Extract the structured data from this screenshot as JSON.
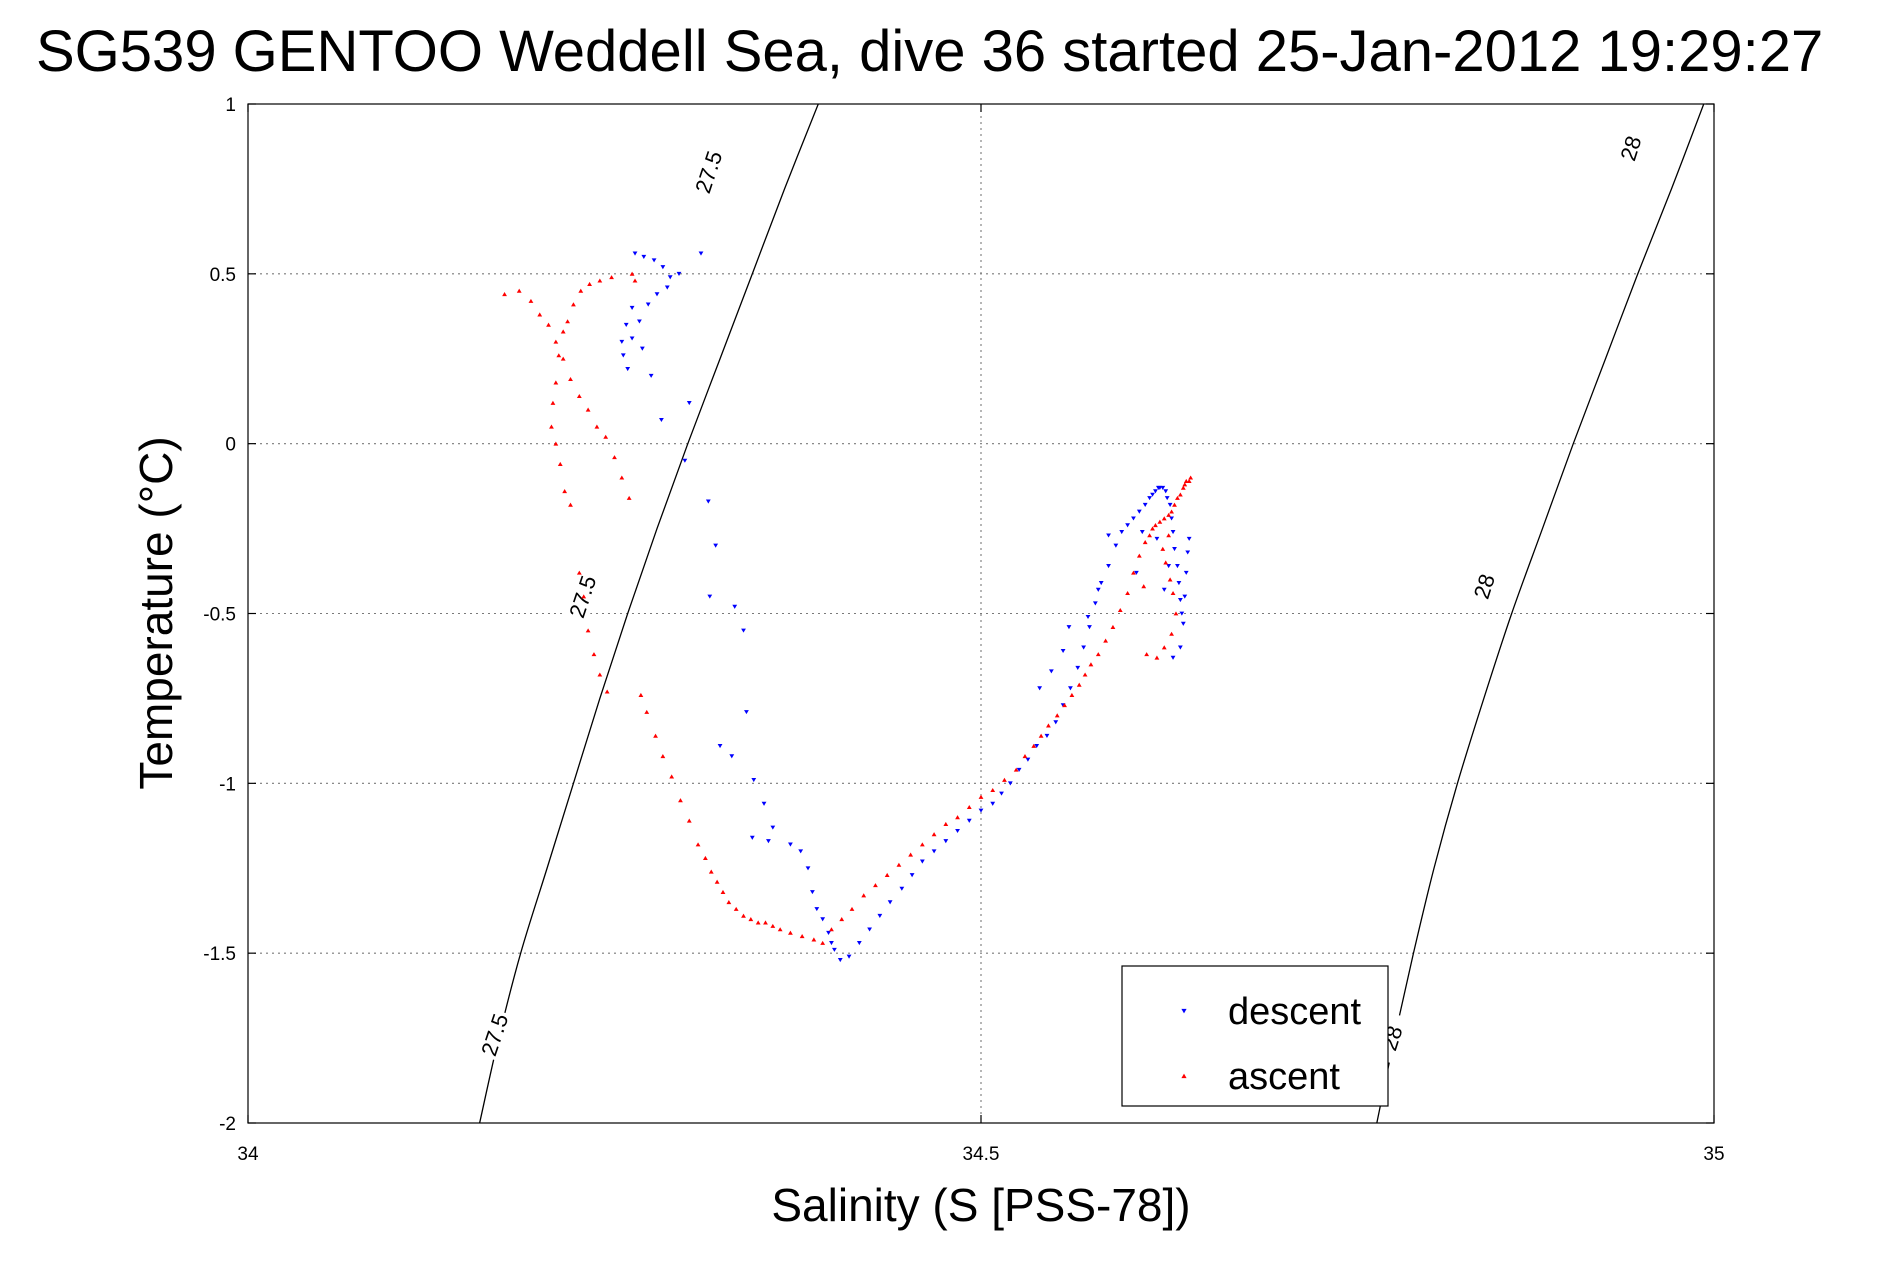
{
  "chart_data": {
    "type": "scatter",
    "title": "SG539 GENTOO Weddell Sea, dive 36 started 25-Jan-2012 19:29:27",
    "xlabel": "Salinity (S [PSS-78])",
    "ylabel": "Temperature (°C)",
    "xlim": [
      34,
      35
    ],
    "ylim": [
      -2,
      1
    ],
    "xticks": [
      34,
      34.5,
      35
    ],
    "xtick_labels": [
      "34",
      "34.5",
      "35"
    ],
    "yticks": [
      1,
      0.5,
      0,
      -0.5,
      -1,
      -1.5,
      -2
    ],
    "ytick_labels": [
      "1",
      "0.5",
      "0",
      "-0.5",
      "-1",
      "-1.5",
      "-2"
    ],
    "grid": true,
    "legend_position": "bottom-right",
    "isopycnals": [
      {
        "label": "27.5",
        "value": 27.5,
        "color": "#000000",
        "points": [
          [
            34.158,
            -2.0
          ],
          [
            34.171,
            -1.75
          ],
          [
            34.186,
            -1.5
          ],
          [
            34.204,
            -1.25
          ],
          [
            34.222,
            -1.0
          ],
          [
            34.24,
            -0.75
          ],
          [
            34.259,
            -0.5
          ],
          [
            34.279,
            -0.25
          ],
          [
            34.3,
            0.0
          ],
          [
            34.322,
            0.25
          ],
          [
            34.344,
            0.5
          ],
          [
            34.366,
            0.75
          ],
          [
            34.389,
            1.0
          ]
        ],
        "label_positions": [
          [
            34.168,
            -1.74
          ],
          [
            34.228,
            -0.45
          ],
          [
            34.314,
            0.8
          ]
        ]
      },
      {
        "label": "28",
        "value": 28,
        "color": "#000000",
        "points": [
          [
            34.77,
            -2.0
          ],
          [
            34.782,
            -1.75
          ],
          [
            34.795,
            -1.5
          ],
          [
            34.809,
            -1.25
          ],
          [
            34.825,
            -1.0
          ],
          [
            34.843,
            -0.75
          ],
          [
            34.862,
            -0.5
          ],
          [
            34.883,
            -0.25
          ],
          [
            34.904,
            0.0
          ],
          [
            34.926,
            0.25
          ],
          [
            34.948,
            0.5
          ],
          [
            34.971,
            0.75
          ],
          [
            34.993,
            1.0
          ]
        ],
        "label_positions": [
          [
            34.78,
            -1.75
          ],
          [
            34.843,
            -0.42
          ],
          [
            34.943,
            0.87
          ]
        ]
      }
    ],
    "series": [
      {
        "name": "descent",
        "marker": "triangle-down",
        "color": "#0000ff",
        "x": [
          34.264,
          34.27,
          34.277,
          34.283,
          34.288,
          34.262,
          34.258,
          34.255,
          34.256,
          34.259,
          34.262,
          34.267,
          34.273,
          34.279,
          34.286,
          34.294,
          34.309,
          34.301,
          34.269,
          34.275,
          34.282,
          34.314,
          34.298,
          34.319,
          34.315,
          34.332,
          34.338,
          34.34,
          34.322,
          34.33,
          34.345,
          34.352,
          34.358,
          34.344,
          34.355,
          34.37,
          34.377,
          34.382,
          34.385,
          34.388,
          34.392,
          34.396,
          34.398,
          34.4,
          34.404,
          34.41,
          34.417,
          34.424,
          34.431,
          34.438,
          34.446,
          34.453,
          34.46,
          34.468,
          34.476,
          34.484,
          34.492,
          34.5,
          34.508,
          34.514,
          34.52,
          34.526,
          34.532,
          34.538,
          34.545,
          34.551,
          34.556,
          34.561,
          34.566,
          34.57,
          34.574,
          34.578,
          34.582,
          34.587,
          34.592,
          34.596,
          34.6,
          34.604,
          34.608,
          34.612,
          34.615,
          34.617,
          34.619,
          34.621,
          34.622,
          34.624,
          34.626,
          34.627,
          34.629,
          34.63,
          34.631,
          34.632,
          34.634,
          34.635,
          34.636,
          34.637,
          34.638,
          34.639,
          34.64,
          34.641,
          34.642,
          34.628,
          34.625,
          34.62,
          34.636,
          34.631,
          34.61,
          34.606,
          34.587,
          34.58,
          34.573,
          34.56,
          34.556,
          34.548,
          34.54
        ],
        "y": [
          0.56,
          0.55,
          0.54,
          0.52,
          0.49,
          0.4,
          0.35,
          0.3,
          0.26,
          0.22,
          0.31,
          0.36,
          0.41,
          0.44,
          0.46,
          0.5,
          0.56,
          0.12,
          0.28,
          0.2,
          0.07,
          -0.17,
          -0.05,
          -0.3,
          -0.45,
          -0.48,
          -0.55,
          -0.79,
          -0.89,
          -0.92,
          -0.99,
          -1.06,
          -1.13,
          -1.16,
          -1.17,
          -1.18,
          -1.2,
          -1.25,
          -1.32,
          -1.37,
          -1.4,
          -1.44,
          -1.47,
          -1.49,
          -1.52,
          -1.51,
          -1.47,
          -1.43,
          -1.39,
          -1.35,
          -1.31,
          -1.27,
          -1.23,
          -1.2,
          -1.17,
          -1.14,
          -1.11,
          -1.08,
          -1.06,
          -1.03,
          -1.0,
          -0.96,
          -0.93,
          -0.89,
          -0.86,
          -0.82,
          -0.77,
          -0.72,
          -0.66,
          -0.6,
          -0.54,
          -0.47,
          -0.41,
          -0.36,
          -0.3,
          -0.26,
          -0.24,
          -0.22,
          -0.2,
          -0.18,
          -0.16,
          -0.15,
          -0.14,
          -0.13,
          -0.13,
          -0.13,
          -0.14,
          -0.16,
          -0.18,
          -0.22,
          -0.26,
          -0.31,
          -0.36,
          -0.41,
          -0.46,
          -0.5,
          -0.53,
          -0.45,
          -0.38,
          -0.32,
          -0.28,
          -0.36,
          -0.43,
          -0.28,
          -0.6,
          -0.63,
          -0.26,
          -0.38,
          -0.27,
          -0.43,
          -0.51,
          -0.54,
          -0.61,
          -0.67,
          -0.72
        ]
      },
      {
        "name": "ascent",
        "marker": "triangle-up",
        "color": "#ff0000",
        "x": [
          34.175,
          34.185,
          34.193,
          34.199,
          34.205,
          34.21,
          34.215,
          34.22,
          34.226,
          34.232,
          34.238,
          34.244,
          34.25,
          34.255,
          34.26,
          34.264,
          34.262,
          34.248,
          34.24,
          34.233,
          34.227,
          34.222,
          34.218,
          34.215,
          34.212,
          34.21,
          34.208,
          34.207,
          34.21,
          34.213,
          34.216,
          34.22,
          34.226,
          34.229,
          34.232,
          34.236,
          34.24,
          34.245,
          34.268,
          34.272,
          34.278,
          34.283,
          34.289,
          34.295,
          34.301,
          34.307,
          34.312,
          34.316,
          34.32,
          34.324,
          34.328,
          34.333,
          34.338,
          34.343,
          34.348,
          34.353,
          34.358,
          34.363,
          34.37,
          34.378,
          34.386,
          34.392,
          34.398,
          34.405,
          34.412,
          34.42,
          34.428,
          34.436,
          34.444,
          34.452,
          34.46,
          34.468,
          34.476,
          34.484,
          34.492,
          34.5,
          34.508,
          34.516,
          34.524,
          34.53,
          34.536,
          34.541,
          34.546,
          34.552,
          34.557,
          34.562,
          34.567,
          34.571,
          34.575,
          34.58,
          34.585,
          34.59,
          34.595,
          34.6,
          34.604,
          34.608,
          34.612,
          34.615,
          34.617,
          34.619,
          34.622,
          34.625,
          34.628,
          34.63,
          34.632,
          34.634,
          34.636,
          34.638,
          34.639,
          34.64,
          34.642,
          34.643,
          34.628,
          34.624,
          34.626,
          34.629,
          34.631,
          34.633,
          34.63,
          34.625,
          34.613,
          34.62,
          34.611
        ],
        "y": [
          0.44,
          0.45,
          0.42,
          0.38,
          0.35,
          0.3,
          0.25,
          0.19,
          0.14,
          0.1,
          0.05,
          0.02,
          -0.04,
          -0.1,
          -0.16,
          0.48,
          0.5,
          0.49,
          0.48,
          0.47,
          0.45,
          0.41,
          0.36,
          0.33,
          0.26,
          0.18,
          0.12,
          0.05,
          0.0,
          -0.06,
          -0.14,
          -0.18,
          -0.38,
          -0.45,
          -0.55,
          -0.62,
          -0.68,
          -0.73,
          -0.74,
          -0.79,
          -0.86,
          -0.92,
          -0.98,
          -1.05,
          -1.11,
          -1.18,
          -1.22,
          -1.26,
          -1.29,
          -1.32,
          -1.35,
          -1.37,
          -1.39,
          -1.4,
          -1.41,
          -1.41,
          -1.42,
          -1.43,
          -1.44,
          -1.45,
          -1.46,
          -1.47,
          -1.43,
          -1.4,
          -1.37,
          -1.33,
          -1.3,
          -1.27,
          -1.24,
          -1.21,
          -1.18,
          -1.15,
          -1.12,
          -1.1,
          -1.07,
          -1.04,
          -1.02,
          -0.99,
          -0.96,
          -0.92,
          -0.89,
          -0.86,
          -0.83,
          -0.8,
          -0.77,
          -0.74,
          -0.71,
          -0.68,
          -0.65,
          -0.62,
          -0.58,
          -0.54,
          -0.49,
          -0.44,
          -0.38,
          -0.33,
          -0.29,
          -0.27,
          -0.25,
          -0.24,
          -0.23,
          -0.22,
          -0.21,
          -0.2,
          -0.18,
          -0.16,
          -0.15,
          -0.13,
          -0.12,
          -0.11,
          -0.11,
          -0.1,
          -0.27,
          -0.31,
          -0.35,
          -0.4,
          -0.44,
          -0.5,
          -0.56,
          -0.6,
          -0.62,
          -0.63,
          -0.42
        ]
      }
    ]
  }
}
